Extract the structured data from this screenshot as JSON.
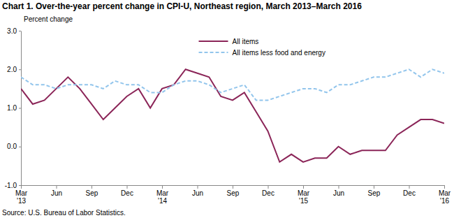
{
  "chart_data": {
    "type": "line",
    "title": "Chart 1. Over-the-year percent change in CPI-U, Northeast region, March 2013–March 2016",
    "y_label": "Percent change",
    "source": "Source: U.S. Bureau of Labor Statistics.",
    "categories": [
      "Mar '13",
      null,
      null,
      "Jun",
      null,
      null,
      "Sep",
      null,
      null,
      "Dec",
      null,
      null,
      "Mar '14",
      null,
      null,
      "Jun",
      null,
      null,
      "Sep",
      null,
      null,
      "Dec",
      null,
      null,
      "Mar '15",
      null,
      null,
      "Jun",
      null,
      null,
      "Sep",
      null,
      null,
      "Dec",
      null,
      null,
      "Mar '16"
    ],
    "series": [
      {
        "name": "All items",
        "color": "#8b2558",
        "line_style": "solid",
        "values": [
          1.5,
          1.1,
          1.2,
          1.5,
          1.8,
          1.5,
          1.1,
          0.7,
          1.0,
          1.3,
          1.5,
          1.0,
          1.5,
          1.6,
          2.0,
          1.9,
          1.8,
          1.3,
          1.2,
          1.4,
          0.9,
          0.4,
          -0.4,
          -0.2,
          -0.4,
          -0.3,
          -0.3,
          0.0,
          -0.2,
          -0.1,
          -0.1,
          -0.1,
          0.3,
          0.5,
          0.7,
          0.7,
          0.6
        ]
      },
      {
        "name": "All items less food and energy",
        "color": "#92c5ec",
        "line_style": "dashed",
        "values": [
          1.8,
          1.6,
          1.6,
          1.5,
          1.6,
          1.6,
          1.6,
          1.5,
          1.7,
          1.6,
          1.6,
          1.4,
          1.4,
          1.6,
          1.7,
          1.7,
          1.6,
          1.4,
          1.5,
          1.6,
          1.2,
          1.2,
          1.3,
          1.4,
          1.5,
          1.5,
          1.4,
          1.6,
          1.6,
          1.7,
          1.8,
          1.8,
          1.9,
          2.0,
          1.8,
          2.0,
          1.9
        ]
      }
    ],
    "ylim": [
      -1,
      3
    ],
    "yticks": [
      {
        "value": -1,
        "label": "-1.0"
      },
      {
        "value": 0,
        "label": "0.0"
      },
      {
        "value": 1,
        "label": "1.0"
      },
      {
        "value": 2,
        "label": "2.0"
      },
      {
        "value": 3,
        "label": "3.0"
      }
    ],
    "grid": false,
    "legend": "top"
  }
}
